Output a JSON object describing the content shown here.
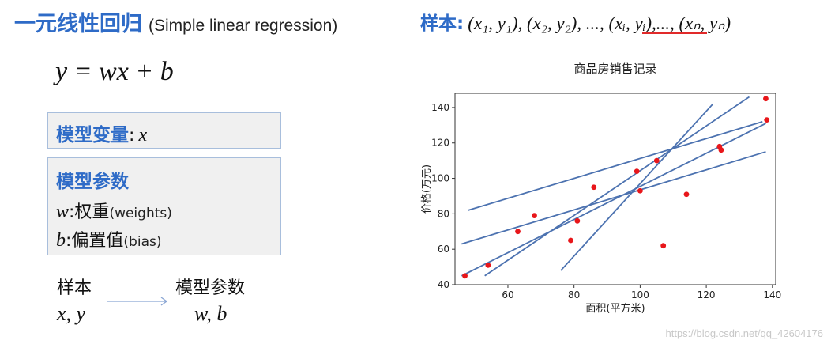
{
  "title": {
    "main": "一元线性回归",
    "english": "(Simple linear regression)"
  },
  "sample_header": {
    "label": "样本",
    "colon": ":",
    "formula": "(x₁, y₁), (x₂, y₂), ..., (xᵢ, yᵢ),..., (xₙ, yₙ)"
  },
  "equation": "y = wx + b",
  "box_variable": {
    "label": "模型变量",
    "colon": ":",
    "symbol": "x"
  },
  "box_params": {
    "label": "模型参数",
    "w_symbol": "w",
    "w_cn": ":权重",
    "w_en": "(weights)",
    "b_symbol": "b",
    "b_cn": ":偏置值",
    "b_en": "(bias)"
  },
  "mapping": {
    "left_top": "样本",
    "left_bottom": "x, y",
    "right_top": "模型参数",
    "right_bottom": "w, b"
  },
  "colors": {
    "accent_blue": "#2e6bc7",
    "line_blue": "#4c72b0",
    "point_red": "#e8161a",
    "underline_red": "#e12a2a"
  },
  "chart_data": {
    "type": "scatter",
    "title": "商品房销售记录",
    "xlabel": "面积(平方米)",
    "ylabel": "价格(万元)",
    "xlim": [
      44,
      141
    ],
    "ylim": [
      40,
      148
    ],
    "xticks": [
      60,
      80,
      100,
      120,
      140
    ],
    "yticks": [
      40,
      60,
      80,
      100,
      120,
      140
    ],
    "grid": false,
    "points": [
      {
        "x": 47,
        "y": 45
      },
      {
        "x": 54,
        "y": 51
      },
      {
        "x": 63,
        "y": 70
      },
      {
        "x": 68,
        "y": 79
      },
      {
        "x": 79,
        "y": 65
      },
      {
        "x": 81,
        "y": 76
      },
      {
        "x": 86,
        "y": 95
      },
      {
        "x": 99,
        "y": 104
      },
      {
        "x": 100,
        "y": 93
      },
      {
        "x": 105,
        "y": 110
      },
      {
        "x": 107,
        "y": 62
      },
      {
        "x": 114,
        "y": 91
      },
      {
        "x": 124,
        "y": 118
      },
      {
        "x": 124.5,
        "y": 116
      },
      {
        "x": 138,
        "y": 145
      },
      {
        "x": 138.3,
        "y": 133
      }
    ],
    "lines": [
      {
        "x": [
          48,
          137
        ],
        "y": [
          82,
          132
        ]
      },
      {
        "x": [
          46,
          138
        ],
        "y": [
          63,
          115
        ]
      },
      {
        "x": [
          46,
          138
        ],
        "y": [
          45,
          131
        ]
      },
      {
        "x": [
          53,
          133
        ],
        "y": [
          45,
          146
        ]
      },
      {
        "x": [
          76,
          122
        ],
        "y": [
          48,
          142
        ]
      }
    ]
  },
  "watermark": "https://blog.csdn.net/qq_42604176"
}
